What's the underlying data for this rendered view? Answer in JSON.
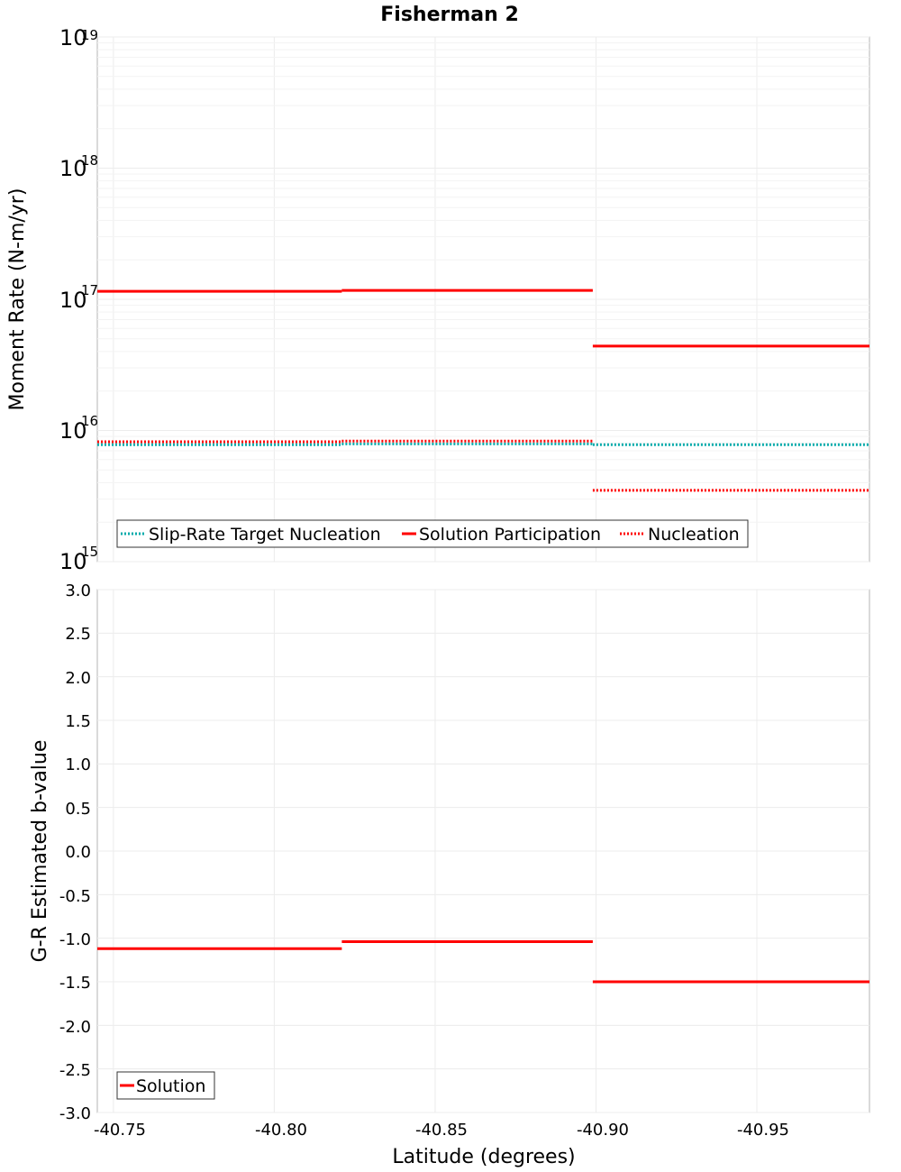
{
  "chart_data": [
    {
      "type": "line",
      "title": "Fisherman 2",
      "xlabel": "",
      "ylabel": "Moment Rate (N-m/yr)",
      "yscale": "log",
      "ylim_exponents": [
        15,
        19
      ],
      "y_tick_base": "10",
      "y_tick_exponents": [
        "15",
        "16",
        "17",
        "18",
        "19"
      ],
      "xlim": [
        -40.745,
        -40.985
      ],
      "grid": true,
      "legend_position": "bottom-left",
      "series": [
        {
          "name": "Slip-Rate Target Nucleation",
          "color": "#00aaaa",
          "style": "dotted",
          "segments": [
            {
              "x": [
                -40.745,
                -40.821
              ],
              "y": 7800000000000000.0
            },
            {
              "x": [
                -40.821,
                -40.899
              ],
              "y": 7900000000000000.0
            },
            {
              "x": [
                -40.899,
                -40.985
              ],
              "y": 7800000000000000.0
            }
          ]
        },
        {
          "name": "Solution Participation",
          "color": "#ff0000",
          "style": "solid",
          "segments": [
            {
              "x": [
                -40.745,
                -40.821
              ],
              "y": 1.15e+17
            },
            {
              "x": [
                -40.821,
                -40.899
              ],
              "y": 1.17e+17
            },
            {
              "x": [
                -40.899,
                -40.985
              ],
              "y": 4.4e+16
            }
          ]
        },
        {
          "name": "Nucleation",
          "color": "#ff0000",
          "style": "dotted",
          "segments": [
            {
              "x": [
                -40.745,
                -40.821
              ],
              "y": 8200000000000000.0
            },
            {
              "x": [
                -40.821,
                -40.899
              ],
              "y": 8300000000000000.0
            },
            {
              "x": [
                -40.899,
                -40.985
              ],
              "y": 3500000000000000.0
            }
          ]
        }
      ]
    },
    {
      "type": "line",
      "title": "",
      "xlabel": "Latitude (degrees)",
      "ylabel": "G-R Estimated b-value",
      "ylim": [
        -3.0,
        3.0
      ],
      "y_ticks": [
        "3.0",
        "2.5",
        "2.0",
        "1.5",
        "1.0",
        "0.5",
        "0.0",
        "-0.5",
        "-1.0",
        "-1.5",
        "-2.0",
        "-2.5",
        "-3.0"
      ],
      "xlim": [
        -40.745,
        -40.985
      ],
      "x_ticks": [
        "-40.75",
        "-40.80",
        "-40.85",
        "-40.90",
        "-40.95"
      ],
      "grid": true,
      "legend_position": "bottom-left",
      "series": [
        {
          "name": "Solution",
          "color": "#ff0000",
          "style": "solid",
          "segments": [
            {
              "x": [
                -40.745,
                -40.821
              ],
              "y": -1.12
            },
            {
              "x": [
                -40.821,
                -40.899
              ],
              "y": -1.04
            },
            {
              "x": [
                -40.899,
                -40.985
              ],
              "y": -1.5
            }
          ]
        }
      ]
    }
  ]
}
